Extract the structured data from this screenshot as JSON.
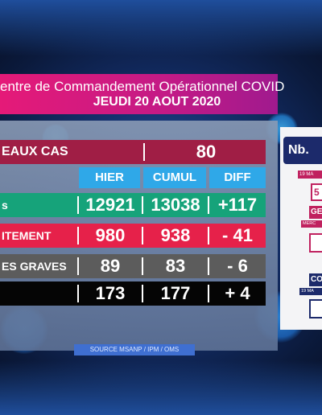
{
  "header": {
    "title": "entre de Commandement Opérationnel COVID",
    "date": "JEUDI 20 AOUT 2020"
  },
  "table": {
    "new_cases": {
      "label": "EAUX CAS",
      "value": "80"
    },
    "columns": [
      "HIER",
      "CUMUL",
      "DIFF"
    ],
    "rows": [
      {
        "label": "s",
        "hier": "12921",
        "cumul": "13038",
        "diff": "+117",
        "color": "#16a37a"
      },
      {
        "label": "ITEMENT",
        "hier": "980",
        "cumul": "938",
        "diff": "- 41",
        "color": "#e6214a"
      },
      {
        "label": "ES GRAVES",
        "hier": "89",
        "cumul": "83",
        "diff": "- 6",
        "color": "#5c5c5c"
      },
      {
        "label": "",
        "hier": "173",
        "cumul": "177",
        "diff": "+ 4",
        "color": "#050505"
      }
    ]
  },
  "source": "SOURCE MSANP / IPM / OMS",
  "side_card": {
    "title": "Nb.",
    "date1": "19 MA",
    "box1": "5",
    "ge": "GE",
    "merc": "MERC",
    "co": "CO",
    "date2": "19 MA"
  },
  "colors": {
    "title_bar": "#e51a78",
    "new_cases_bg": "#a01e45",
    "header_cell_bg": "#2fa8e8",
    "card_dark": "#1c2a6b",
    "card_accent": "#c0215f"
  }
}
